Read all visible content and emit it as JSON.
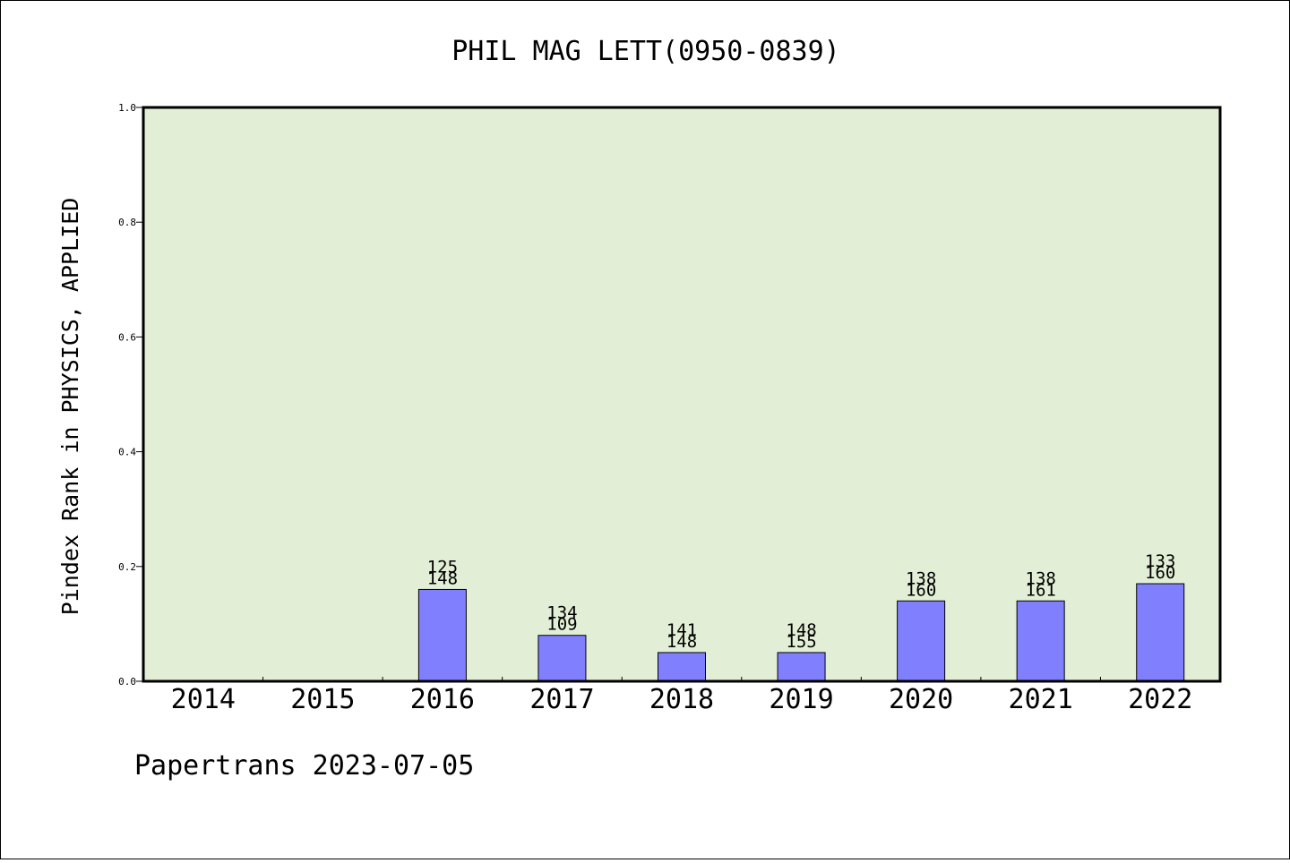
{
  "chart_data": {
    "type": "bar",
    "title": "PHIL MAG LETT(0950-0839)",
    "ylabel": "Pindex Rank in PHYSICS, APPLIED",
    "xlabel": "",
    "ylim": [
      0,
      1.0
    ],
    "yticks": [
      "0.0",
      "0.2",
      "0.4",
      "0.6",
      "0.8",
      "1.0"
    ],
    "categories": [
      "2014",
      "2015",
      "2016",
      "2017",
      "2018",
      "2019",
      "2020",
      "2021",
      "2022"
    ],
    "values": [
      0,
      0,
      0.16,
      0.08,
      0.05,
      0.05,
      0.14,
      0.14,
      0.17
    ],
    "bar_labels": [
      null,
      null,
      [
        "125",
        "148"
      ],
      [
        "134",
        "109"
      ],
      [
        "141",
        "148"
      ],
      [
        "148",
        "155"
      ],
      [
        "138",
        "160"
      ],
      [
        "138",
        "161"
      ],
      [
        "133",
        "160"
      ]
    ],
    "grid": false,
    "colors": {
      "plot_background": "#e2efd6",
      "bar_fill": "#8080ff",
      "bar_stroke": "#000000",
      "axis": "#000000"
    }
  },
  "footer": {
    "text": "Papertrans 2023-07-05"
  }
}
